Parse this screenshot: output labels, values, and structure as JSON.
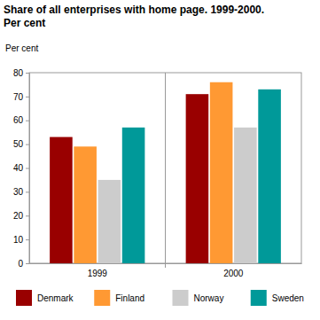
{
  "chart_data": {
    "type": "bar",
    "title": "Share of all enterprises with home page. 1999-2000.",
    "subtitle": "Per cent",
    "y_label": "Per cent",
    "categories": [
      "1999",
      "2000"
    ],
    "series": [
      {
        "name": "Denmark",
        "color": "#990000",
        "values": [
          53,
          71
        ]
      },
      {
        "name": "Finland",
        "color": "#ff9933",
        "values": [
          49,
          76
        ]
      },
      {
        "name": "Norway",
        "color": "#cccccc",
        "values": [
          35,
          57
        ]
      },
      {
        "name": "Sweden",
        "color": "#009999",
        "values": [
          57,
          73
        ]
      }
    ],
    "ylim": [
      0,
      80
    ],
    "yticks": [
      0,
      10,
      20,
      30,
      40,
      50,
      60,
      70,
      80
    ],
    "grid": false,
    "legend": "bottom"
  }
}
